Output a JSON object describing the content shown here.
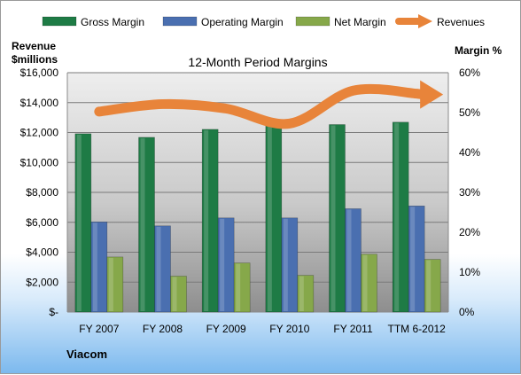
{
  "chart_data": {
    "type": "bar",
    "title": "12-Month Period Margins",
    "left_axis_label_line1": "Revenue",
    "left_axis_label_line2": "$millions",
    "right_axis_label": "Margin %",
    "company": "Viacom",
    "categories": [
      "FY 2007",
      "FY 2008",
      "FY 2009",
      "FY 2010",
      "FY 2011",
      "TTM 6-2012"
    ],
    "left_ticks": [
      "$-",
      "$2,000",
      "$4,000",
      "$6,000",
      "$8,000",
      "$10,000",
      "$12,000",
      "$14,000",
      "$16,000"
    ],
    "right_ticks": [
      "0%",
      "10%",
      "20%",
      "30%",
      "40%",
      "50%",
      "60%"
    ],
    "ylim_left": [
      0,
      16000
    ],
    "ylim_right": [
      0,
      60
    ],
    "grid": true,
    "legend_position": "top",
    "series": [
      {
        "name": "Gross Margin",
        "kind": "bar",
        "axis": "right",
        "color": "#1e7b45",
        "values": [
          44.7,
          43.8,
          45.8,
          47.8,
          47.0,
          47.6
        ]
      },
      {
        "name": "Operating Margin",
        "kind": "bar",
        "axis": "right",
        "color": "#4a6fb0",
        "values": [
          22.6,
          21.6,
          23.6,
          23.6,
          25.9,
          26.6
        ]
      },
      {
        "name": "Net Margin",
        "kind": "bar",
        "axis": "right",
        "color": "#86a84a",
        "values": [
          13.8,
          9.0,
          12.3,
          9.2,
          14.5,
          13.2
        ]
      },
      {
        "name": "Revenues",
        "kind": "line",
        "axis": "left",
        "color": "#e8843a",
        "values": [
          13400,
          13900,
          13600,
          12600,
          14800,
          14600
        ]
      }
    ]
  }
}
